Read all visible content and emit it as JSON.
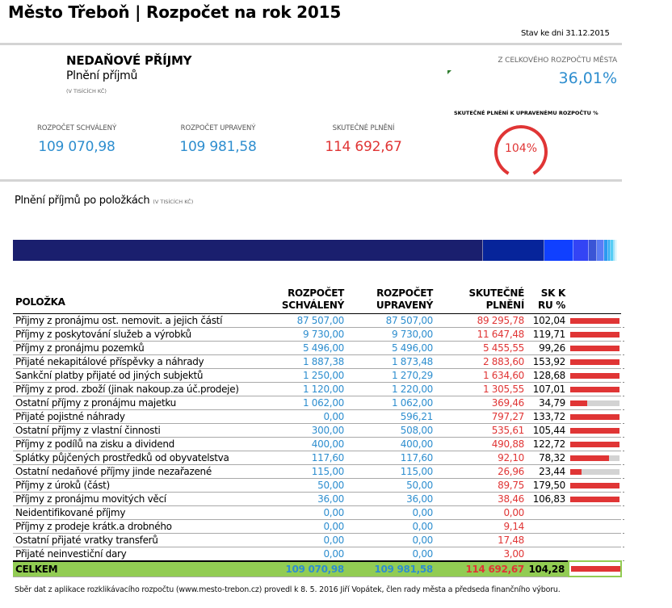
{
  "header": {
    "title": "Město Třeboň | Rozpočet na rok 2015",
    "date": "Stav ke dni 31.12.2015"
  },
  "summary": {
    "section_title": "NEDAŇOVÉ PŘÍJMY",
    "section_subtitle": "Plnění příjmů",
    "unit": "(V TISÍCÍCH KČ)",
    "share_label": "Z CELKOVÉHO ROZPOČTU MĚSTA",
    "share_value": "36,01%",
    "gauge_label": "SKUTEČNÉ PLNĚNÍ K UPRAVENÉMU ROZPOČTU %",
    "gauge_value_text": "104%",
    "gauge_value_percent": 104,
    "kpis": [
      {
        "label": "ROZPOČET SCHVÁLENÝ",
        "value": "109 070,98",
        "color": "#2e8ecf"
      },
      {
        "label": "ROZPOČET UPRAVENÝ",
        "value": "109 981,58",
        "color": "#2e8ecf"
      },
      {
        "label": "SKUTEČNÉ PLNĚNÍ",
        "value": "114 692,67",
        "color": "#e03535"
      }
    ]
  },
  "items_section": {
    "title": "Plnění příjmů po položkách",
    "unit": "(V TISÍCÍCH KČ)"
  },
  "stacked_bar": {
    "segments": [
      {
        "value": 89295.78,
        "color": "#1a1f6e"
      },
      {
        "value": 11647.48,
        "color": "#06249a"
      },
      {
        "value": 5455.55,
        "color": "#1040ff"
      },
      {
        "value": 2883.6,
        "color": "#3344f5"
      },
      {
        "value": 1634.6,
        "color": "#3a55d6"
      },
      {
        "value": 1305.55,
        "color": "#5b7cf5"
      },
      {
        "value": 797.27,
        "color": "#2b9af0"
      },
      {
        "value": 535.61,
        "color": "#33b0f2"
      },
      {
        "value": 490.88,
        "color": "#55cdf5"
      },
      {
        "value": 369.46,
        "color": "#a8e4f8"
      },
      {
        "value": 92.1,
        "color": "#c6eefb"
      },
      {
        "value": 89.75,
        "color": "#d6f3fc"
      }
    ]
  },
  "table": {
    "headers": {
      "item": "POLOŽKA",
      "approved": [
        "ROZPOČET",
        "SCHVÁLENÝ"
      ],
      "adjusted": [
        "ROZPOČET",
        "UPRAVENÝ"
      ],
      "actual": [
        "SKUTEČNÉ",
        "PLNĚNÍ"
      ],
      "pct": [
        "SK K",
        "RU %"
      ]
    },
    "rows": [
      {
        "item": "Přijmy z pronájmu ost. nemovit. a jejich částí",
        "approved": "87 507,00",
        "adjusted": "87 507,00",
        "actual": "89 295,78",
        "pct": "102,04",
        "fill": 1.0
      },
      {
        "item": "Příjmy z poskytování služeb a výrobků",
        "approved": "9 730,00",
        "adjusted": "9 730,00",
        "actual": "11 647,48",
        "pct": "119,71",
        "fill": 1.0
      },
      {
        "item": "Příjmy z pronájmu pozemků",
        "approved": "5 496,00",
        "adjusted": "5 496,00",
        "actual": "5 455,55",
        "pct": "99,26",
        "fill": 0.9926
      },
      {
        "item": "Přijaté nekapitálové příspěvky a náhrady",
        "approved": "1 887,38",
        "adjusted": "1 873,48",
        "actual": "2 883,60",
        "pct": "153,92",
        "fill": 1.0
      },
      {
        "item": "Sankční platby přijaté od jiných subjektů",
        "approved": "1 250,00",
        "adjusted": "1 270,29",
        "actual": "1 634,60",
        "pct": "128,68",
        "fill": 1.0
      },
      {
        "item": "Příjmy z prod. zboží (jinak nakoup.za úč.prodeje)",
        "approved": "1 120,00",
        "adjusted": "1 220,00",
        "actual": "1 305,55",
        "pct": "107,01",
        "fill": 1.0
      },
      {
        "item": "Ostatní příjmy z pronájmu majetku",
        "approved": "1 062,00",
        "adjusted": "1 062,00",
        "actual": "369,46",
        "pct": "34,79",
        "fill": 0.3479
      },
      {
        "item": "Přijaté pojistné náhrady",
        "approved": "0,00",
        "adjusted": "596,21",
        "actual": "797,27",
        "pct": "133,72",
        "fill": 1.0
      },
      {
        "item": "Ostatní příjmy z vlastní činnosti",
        "approved": "300,00",
        "adjusted": "508,00",
        "actual": "535,61",
        "pct": "105,44",
        "fill": 1.0
      },
      {
        "item": "Příjmy z podílů na zisku a dividend",
        "approved": "400,00",
        "adjusted": "400,00",
        "actual": "490,88",
        "pct": "122,72",
        "fill": 1.0
      },
      {
        "item": "Splátky půjčených prostředků od obyvatelstva",
        "approved": "117,60",
        "adjusted": "117,60",
        "actual": "92,10",
        "pct": "78,32",
        "fill": 0.7832
      },
      {
        "item": "Ostatní nedaňové příjmy jinde nezařazené",
        "approved": "115,00",
        "adjusted": "115,00",
        "actual": "26,96",
        "pct": "23,44",
        "fill": 0.2344
      },
      {
        "item": "Příjmy z úroků (část)",
        "approved": "50,00",
        "adjusted": "50,00",
        "actual": "89,75",
        "pct": "179,50",
        "fill": 1.0
      },
      {
        "item": "Příjmy z pronájmu movitých věcí",
        "approved": "36,00",
        "adjusted": "36,00",
        "actual": "38,46",
        "pct": "106,83",
        "fill": 1.0
      },
      {
        "item": "Neidentifikované příjmy",
        "approved": "0,00",
        "adjusted": "0,00",
        "actual": "0,00",
        "pct": "",
        "fill": null
      },
      {
        "item": "Příjmy z prodeje krátk.a drobného",
        "approved": "0,00",
        "adjusted": "0,00",
        "actual": "9,14",
        "pct": "",
        "fill": null
      },
      {
        "item": "Ostatní přijaté vratky transferů",
        "approved": "0,00",
        "adjusted": "0,00",
        "actual": "17,48",
        "pct": "",
        "fill": null
      },
      {
        "item": "Přijaté neinvestiční dary",
        "approved": "0,00",
        "adjusted": "0,00",
        "actual": "3,00",
        "pct": "",
        "fill": null
      }
    ],
    "total": {
      "item": "CELKEM",
      "approved": "109 070,98",
      "adjusted": "109 981,58",
      "actual": "114 692,67",
      "pct": "104,28",
      "fill": 1.0
    }
  },
  "colors": {
    "blue": "#2e8ecf",
    "red": "#e03535",
    "total_green": "#92cc53",
    "bar_bg": "#d3d3d3"
  },
  "footer": "Sběr dat z aplikace rozklikávacího rozpočtu (www.mesto-trebon.cz) provedl k 8. 5. 2016 Jiří Vopátek, člen rady města a předseda finančního výboru."
}
